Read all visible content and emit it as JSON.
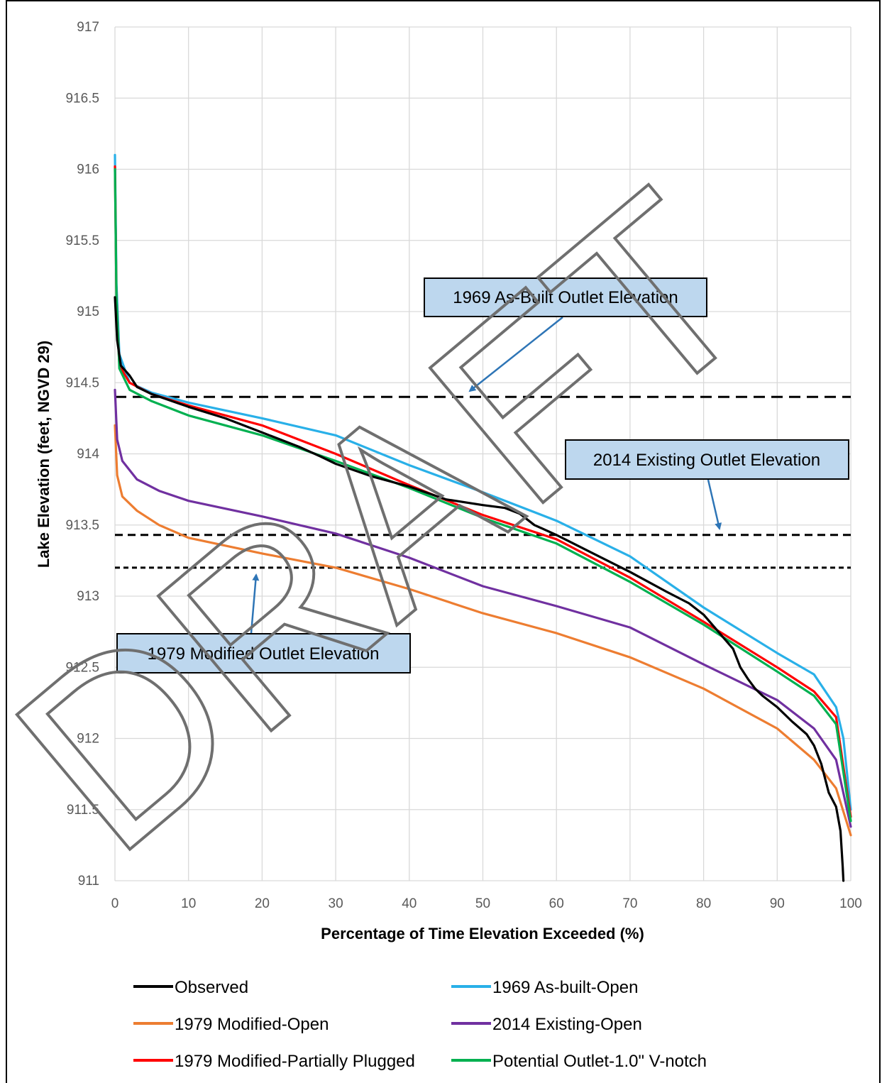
{
  "chart_data": {
    "type": "line",
    "xlabel": "Percentage of Time Elevation Exceeded (%)",
    "ylabel": "Lake Elevation (feet, NGVD 29)",
    "xlim": [
      0,
      100
    ],
    "ylim": [
      911,
      917
    ],
    "grid": true,
    "legend_position": "bottom",
    "x_ticks": [
      "0",
      "10",
      "20",
      "30",
      "40",
      "50",
      "60",
      "70",
      "80",
      "90",
      "100"
    ],
    "y_ticks": [
      "911",
      "911.5",
      "912",
      "912.5",
      "913",
      "913.5",
      "914",
      "914.5",
      "915",
      "915.5",
      "916",
      "916.5",
      "917"
    ],
    "series": [
      {
        "name": "Observed",
        "color": "#000000",
        "points": [
          [
            0,
            915.1
          ],
          [
            0.3,
            914.8
          ],
          [
            0.8,
            914.62
          ],
          [
            2,
            914.55
          ],
          [
            3,
            914.47
          ],
          [
            5,
            914.42
          ],
          [
            10,
            914.33
          ],
          [
            15,
            914.25
          ],
          [
            20,
            914.15
          ],
          [
            25,
            914.05
          ],
          [
            28,
            913.98
          ],
          [
            30,
            913.93
          ],
          [
            35,
            913.84
          ],
          [
            40,
            913.77
          ],
          [
            45,
            913.68
          ],
          [
            50,
            913.64
          ],
          [
            53,
            913.62
          ],
          [
            55,
            913.58
          ],
          [
            57,
            913.5
          ],
          [
            60,
            913.43
          ],
          [
            65,
            913.3
          ],
          [
            70,
            913.17
          ],
          [
            75,
            913.03
          ],
          [
            78,
            912.95
          ],
          [
            80,
            912.87
          ],
          [
            82,
            912.75
          ],
          [
            84,
            912.63
          ],
          [
            85,
            912.5
          ],
          [
            86,
            912.42
          ],
          [
            87,
            912.35
          ],
          [
            88,
            912.3
          ],
          [
            90,
            912.22
          ],
          [
            92,
            912.12
          ],
          [
            94,
            912.03
          ],
          [
            95,
            911.95
          ],
          [
            96,
            911.82
          ],
          [
            97,
            911.62
          ],
          [
            98,
            911.52
          ],
          [
            98.6,
            911.35
          ],
          [
            98.9,
            911.1
          ],
          [
            99,
            911.0
          ]
        ]
      },
      {
        "name": "1969 As-built-Open",
        "color": "#29b0e8",
        "points": [
          [
            0,
            916.1
          ],
          [
            0.2,
            915.2
          ],
          [
            0.6,
            914.7
          ],
          [
            2,
            914.5
          ],
          [
            5,
            914.43
          ],
          [
            10,
            914.36
          ],
          [
            20,
            914.25
          ],
          [
            30,
            914.13
          ],
          [
            40,
            913.92
          ],
          [
            50,
            913.73
          ],
          [
            60,
            913.53
          ],
          [
            70,
            913.28
          ],
          [
            80,
            912.92
          ],
          [
            90,
            912.6
          ],
          [
            95,
            912.45
          ],
          [
            98,
            912.22
          ],
          [
            99,
            912.0
          ],
          [
            100,
            911.5
          ]
        ]
      },
      {
        "name": "1979 Modified-Open",
        "color": "#ed7d31",
        "points": [
          [
            0,
            914.2
          ],
          [
            0.3,
            913.85
          ],
          [
            1,
            913.7
          ],
          [
            3,
            913.6
          ],
          [
            6,
            913.5
          ],
          [
            10,
            913.41
          ],
          [
            20,
            913.3
          ],
          [
            30,
            913.2
          ],
          [
            40,
            913.05
          ],
          [
            50,
            912.88
          ],
          [
            60,
            912.74
          ],
          [
            70,
            912.57
          ],
          [
            80,
            912.35
          ],
          [
            90,
            912.07
          ],
          [
            95,
            911.85
          ],
          [
            98,
            911.65
          ],
          [
            100,
            911.32
          ]
        ]
      },
      {
        "name": "2014 Existing-Open",
        "color": "#7030a0",
        "points": [
          [
            0,
            914.45
          ],
          [
            0.3,
            914.1
          ],
          [
            1,
            913.95
          ],
          [
            3,
            913.82
          ],
          [
            6,
            913.74
          ],
          [
            10,
            913.67
          ],
          [
            20,
            913.56
          ],
          [
            30,
            913.44
          ],
          [
            40,
            913.27
          ],
          [
            50,
            913.07
          ],
          [
            60,
            912.93
          ],
          [
            70,
            912.78
          ],
          [
            80,
            912.52
          ],
          [
            90,
            912.27
          ],
          [
            95,
            912.07
          ],
          [
            98,
            911.85
          ],
          [
            100,
            911.38
          ]
        ]
      },
      {
        "name": "1979 Modified-Partially Plugged",
        "color": "#ff0000",
        "points": [
          [
            0,
            916.02
          ],
          [
            0.2,
            915.1
          ],
          [
            0.6,
            914.62
          ],
          [
            2,
            914.5
          ],
          [
            5,
            914.42
          ],
          [
            10,
            914.34
          ],
          [
            20,
            914.2
          ],
          [
            30,
            914.0
          ],
          [
            40,
            913.78
          ],
          [
            50,
            913.57
          ],
          [
            60,
            913.4
          ],
          [
            70,
            913.13
          ],
          [
            80,
            912.82
          ],
          [
            90,
            912.5
          ],
          [
            95,
            912.33
          ],
          [
            98,
            912.15
          ],
          [
            100,
            911.45
          ]
        ]
      },
      {
        "name": "Potential Outlet-1.0\" V-notch",
        "color": "#00b050",
        "points": [
          [
            0,
            916.0
          ],
          [
            0.2,
            915.1
          ],
          [
            0.6,
            914.6
          ],
          [
            2,
            914.45
          ],
          [
            5,
            914.37
          ],
          [
            10,
            914.27
          ],
          [
            20,
            914.13
          ],
          [
            30,
            913.95
          ],
          [
            40,
            913.76
          ],
          [
            50,
            913.55
          ],
          [
            60,
            913.37
          ],
          [
            70,
            913.1
          ],
          [
            80,
            912.8
          ],
          [
            90,
            912.47
          ],
          [
            95,
            912.3
          ],
          [
            98,
            912.1
          ],
          [
            100,
            911.42
          ]
        ]
      }
    ],
    "reference_lines": [
      {
        "label": "1969 As-Built Outlet Elevation",
        "y": 914.4
      },
      {
        "label": "2014 Existing Outlet Elevation",
        "y": 913.43
      },
      {
        "label": "1979 Modified Outlet Elevation",
        "y": 913.2
      }
    ],
    "watermark": "DRAFT"
  }
}
